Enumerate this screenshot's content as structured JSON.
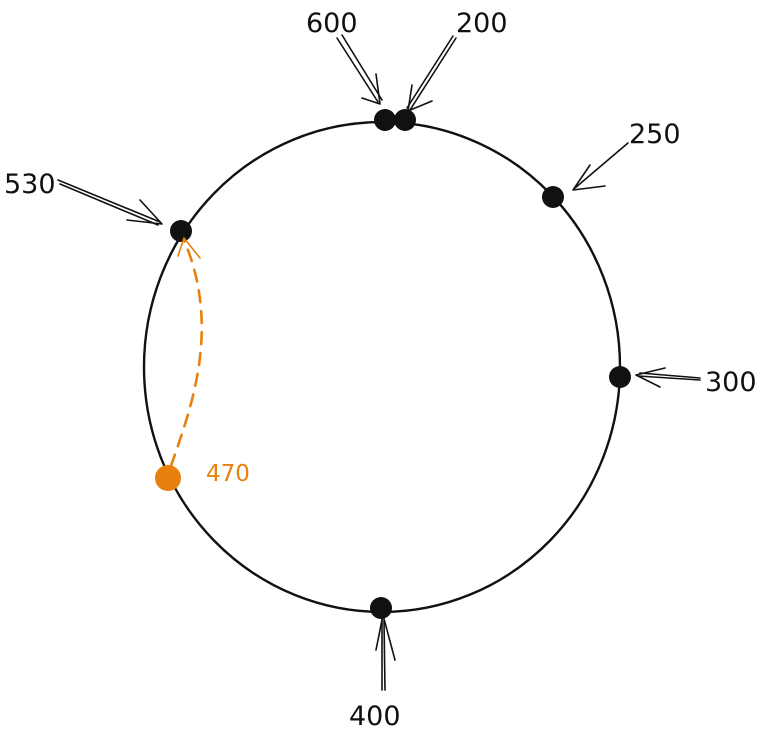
{
  "colors": {
    "ink": "#111111",
    "accent": "#e8800e"
  },
  "nodes": [
    {
      "id": "n600",
      "label": "600"
    },
    {
      "id": "n200",
      "label": "200"
    },
    {
      "id": "n250",
      "label": "250"
    },
    {
      "id": "n300",
      "label": "300"
    },
    {
      "id": "n400",
      "label": "400"
    },
    {
      "id": "n530",
      "label": "530"
    }
  ],
  "moving_node": {
    "label": "470",
    "target_label": "530"
  }
}
